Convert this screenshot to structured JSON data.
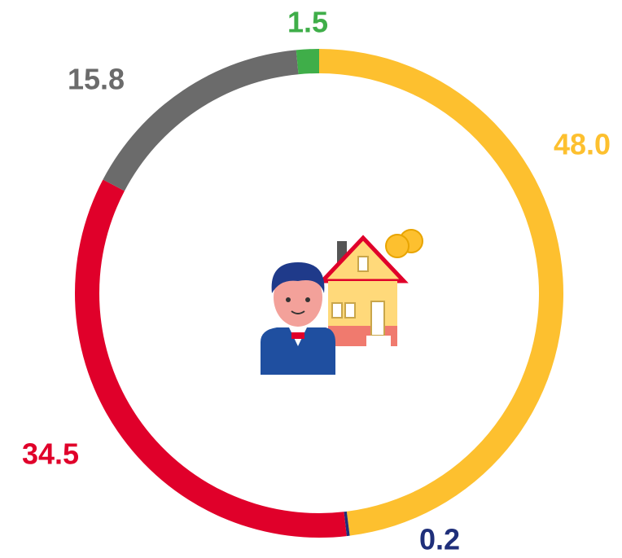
{
  "chart_data": {
    "type": "donut",
    "values": [
      48.0,
      0.2,
      34.5,
      15.8,
      1.5
    ],
    "value_labels": [
      "48.0",
      "0.2",
      "34.5",
      "15.8",
      "1.5"
    ],
    "colors": [
      "#fdc02f",
      "#1f2f7a",
      "#e0002a",
      "#6b6b6b",
      "#3fae49"
    ]
  }
}
